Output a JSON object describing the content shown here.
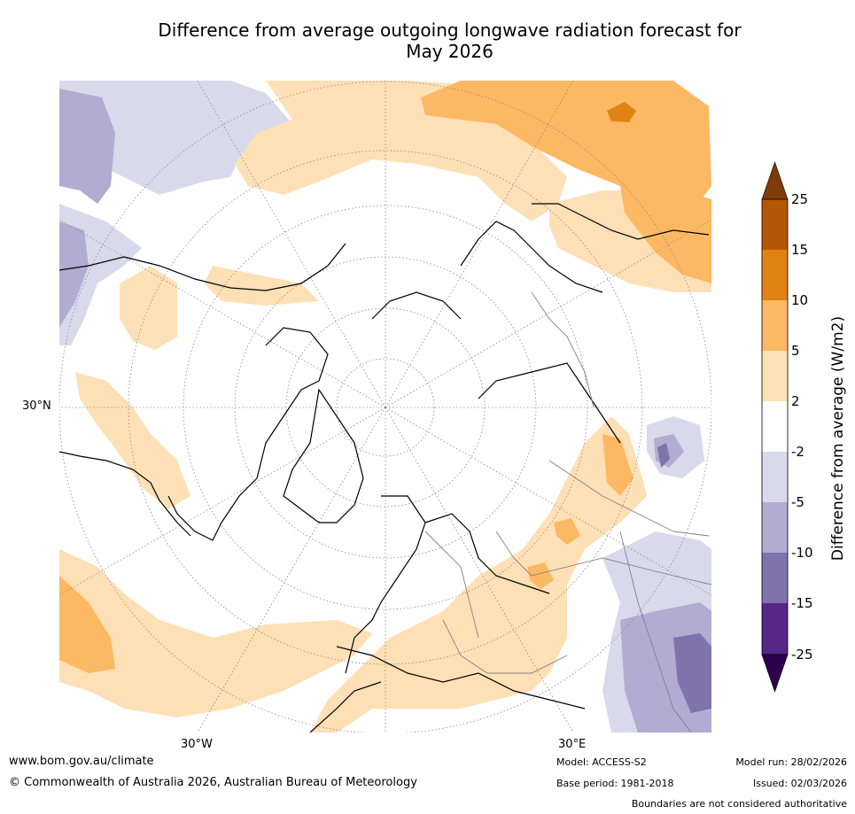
{
  "title": {
    "line1": "Difference from average outgoing longwave radiation forecast for",
    "line2": "May 2026"
  },
  "map": {
    "lat_label": "30°N",
    "lon_label_left": "30°W",
    "lon_label_right": "30°E"
  },
  "legend": {
    "title": "Difference from average (W/m2)",
    "ticks": [
      "25",
      "15",
      "10",
      "5",
      "2",
      "-2",
      "-5",
      "-10",
      "-15",
      "-25"
    ],
    "colors": {
      "above_25": "#7f3b08",
      "c15_25": "#b35806",
      "c10_15": "#e08214",
      "c5_10": "#fdb863",
      "c2_5": "#fee0b6",
      "neutral": "#ffffff",
      "cm5_m2": "#d8daeb",
      "cm10_m5": "#b2abd2",
      "cm15_m10": "#8073ac",
      "cm25_m15": "#542788",
      "below_m25": "#2d004b"
    }
  },
  "footer": {
    "url": "www.bom.gov.au/climate",
    "copyright": "© Commonwealth of Australia 2026, Australian Bureau of Meteorology",
    "model": "Model: ACCESS-S2",
    "base_period": "Base period: 1981-2018",
    "model_run": "Model run: 28/02/2026",
    "issued": "Issued: 02/03/2026",
    "disclaimer": "Boundaries are not considered authoritative"
  }
}
